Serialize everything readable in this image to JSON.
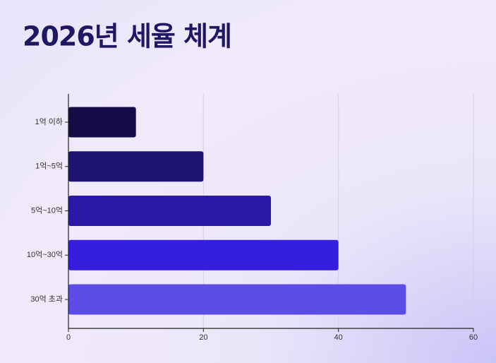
{
  "chart_data": {
    "type": "barh",
    "title": "2026년 세율 체계",
    "categories": [
      "1억 이하",
      "1억~5억",
      "5억~10억",
      "10억~30억",
      "30억 초과"
    ],
    "values": [
      10,
      20,
      30,
      40,
      50
    ],
    "colors": [
      "#130c47",
      "#1e1472",
      "#2a18a8",
      "#351ede",
      "#5c4be4"
    ],
    "xlim": [
      0,
      60
    ],
    "xticks": [
      0,
      20,
      40,
      60
    ],
    "grid": true
  }
}
